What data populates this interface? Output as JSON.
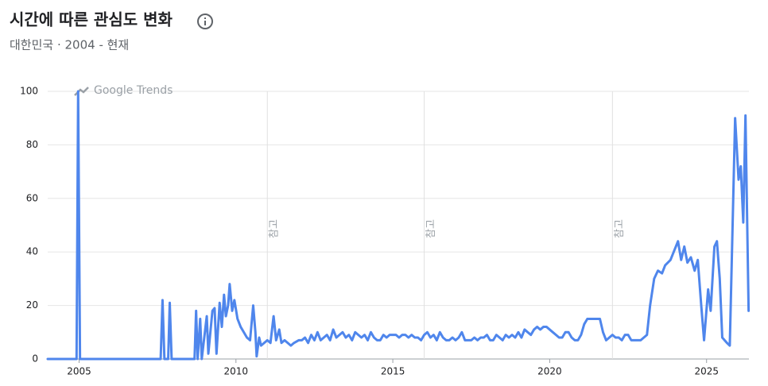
{
  "chart_data": {
    "type": "line",
    "title": "시간에 따른 관심도 변화",
    "subtitle": "대한민국 · 2004 - 현재",
    "watermark": "Google Trends",
    "color": "#4f86ec",
    "grid": true,
    "xlim": [
      2004,
      2026.35
    ],
    "xticks": [
      2005,
      2010,
      2015,
      2020,
      2025
    ],
    "ylim": [
      0,
      100
    ],
    "yticks": [
      0,
      20,
      40,
      60,
      80,
      100
    ],
    "annotations": [
      {
        "x": 2011,
        "label": "참고"
      },
      {
        "x": 2016,
        "label": "참고"
      },
      {
        "x": 2022,
        "label": "참고"
      }
    ],
    "x": [
      2004,
      2004.92,
      2004.97,
      2005.03,
      2007.6,
      2007.66,
      2007.72,
      2007.84,
      2007.89,
      2007.95,
      2008.68,
      2008.73,
      2008.78,
      2008.86,
      2008.91,
      2009.07,
      2009.12,
      2009.25,
      2009.32,
      2009.38,
      2009.48,
      2009.55,
      2009.62,
      2009.68,
      2009.75,
      2009.8,
      2009.88,
      2009.95,
      2010.05,
      2010.15,
      2010.25,
      2010.35,
      2010.45,
      2010.55,
      2010.62,
      2010.66,
      2010.74,
      2010.8,
      2010.9,
      2011,
      2011.1,
      2011.2,
      2011.28,
      2011.38,
      2011.45,
      2011.55,
      2011.65,
      2011.75,
      2011.85,
      2012,
      2012.1,
      2012.2,
      2012.3,
      2012.4,
      2012.5,
      2012.6,
      2012.7,
      2012.8,
      2012.9,
      2013,
      2013.1,
      2013.2,
      2013.3,
      2013.4,
      2013.5,
      2013.6,
      2013.7,
      2013.8,
      2013.9,
      2014,
      2014.1,
      2014.2,
      2014.3,
      2014.4,
      2014.5,
      2014.6,
      2014.7,
      2014.8,
      2014.9,
      2015,
      2015.1,
      2015.2,
      2015.3,
      2015.4,
      2015.5,
      2015.6,
      2015.7,
      2015.8,
      2015.9,
      2016,
      2016.1,
      2016.2,
      2016.3,
      2016.4,
      2016.5,
      2016.6,
      2016.7,
      2016.8,
      2016.9,
      2017,
      2017.1,
      2017.2,
      2017.3,
      2017.4,
      2017.5,
      2017.6,
      2017.7,
      2017.8,
      2017.9,
      2018,
      2018.1,
      2018.2,
      2018.3,
      2018.4,
      2018.5,
      2018.6,
      2018.7,
      2018.8,
      2018.9,
      2019,
      2019.1,
      2019.2,
      2019.3,
      2019.4,
      2019.5,
      2019.6,
      2019.7,
      2019.8,
      2019.9,
      2020,
      2020.1,
      2020.2,
      2020.3,
      2020.4,
      2020.5,
      2020.6,
      2020.7,
      2020.8,
      2020.9,
      2021,
      2021.1,
      2021.2,
      2021.3,
      2021.4,
      2021.5,
      2021.6,
      2021.7,
      2021.8,
      2021.9,
      2022,
      2022.1,
      2022.2,
      2022.3,
      2022.4,
      2022.5,
      2022.6,
      2022.7,
      2022.8,
      2022.9,
      2023,
      2023.1,
      2023.2,
      2023.33,
      2023.45,
      2023.58,
      2023.68,
      2023.85,
      2024.09,
      2024.19,
      2024.29,
      2024.39,
      2024.5,
      2024.62,
      2024.72,
      2024.83,
      2024.92,
      2025.05,
      2025.13,
      2025.25,
      2025.33,
      2025.42,
      2025.5,
      2025.65,
      2025.74,
      2025.91,
      2026.02,
      2026.09,
      2026.17,
      2026.24,
      2026.34
    ],
    "values": [
      0,
      0,
      100,
      0,
      0,
      22,
      0,
      0,
      21,
      0,
      0,
      18,
      0,
      15,
      0,
      16,
      2,
      18,
      19,
      2,
      21,
      12,
      24,
      16,
      20,
      28,
      18,
      22,
      15,
      12,
      10,
      8,
      7,
      20,
      10,
      1,
      8,
      5,
      6,
      7,
      6,
      16,
      7,
      11,
      6,
      7,
      6,
      5,
      6,
      7,
      7,
      8,
      6,
      9,
      7,
      10,
      7,
      8,
      9,
      7,
      11,
      8,
      9,
      10,
      8,
      9,
      7,
      10,
      9,
      8,
      9,
      7,
      10,
      8,
      7,
      7,
      9,
      8,
      9,
      9,
      9,
      8,
      9,
      9,
      8,
      9,
      8,
      8,
      7,
      9,
      10,
      8,
      9,
      7,
      10,
      8,
      7,
      7,
      8,
      7,
      8,
      10,
      7,
      7,
      7,
      8,
      7,
      8,
      8,
      9,
      7,
      7,
      9,
      8,
      7,
      9,
      8,
      9,
      8,
      10,
      8,
      11,
      10,
      9,
      11,
      12,
      11,
      12,
      12,
      11,
      10,
      9,
      8,
      8,
      10,
      10,
      8,
      7,
      7,
      9,
      13,
      15,
      15,
      15,
      15,
      15,
      10,
      7,
      8,
      9,
      8,
      8,
      7,
      9,
      9,
      7,
      7,
      7,
      7,
      8,
      9,
      20,
      30,
      33,
      32,
      35,
      37,
      44,
      37,
      42,
      36,
      38,
      33,
      37,
      20,
      7,
      26,
      18,
      42,
      44,
      30,
      8,
      6,
      5,
      90,
      67,
      72,
      51,
      91,
      18
    ]
  }
}
